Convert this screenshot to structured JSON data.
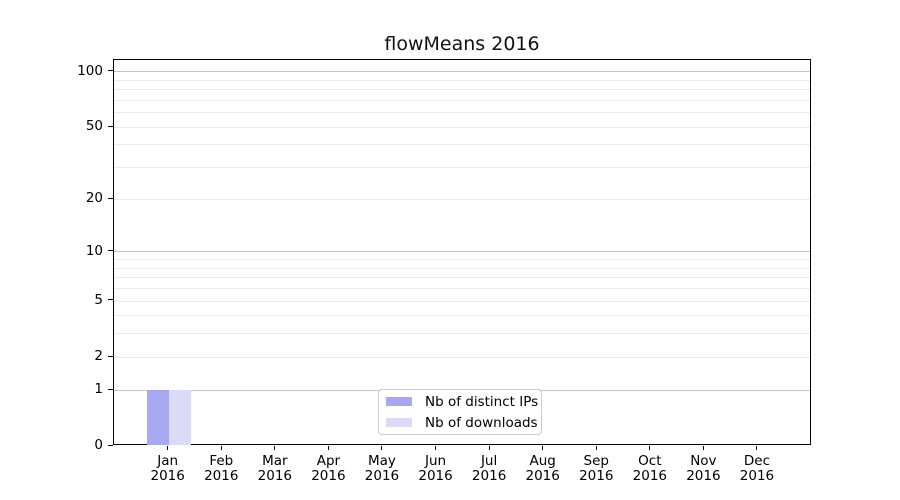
{
  "figure": {
    "title": "flowMeans 2016"
  },
  "chart_data": {
    "type": "bar",
    "title": "flowMeans 2016",
    "x_categories": [
      "Jan 2016",
      "Feb 2016",
      "Mar 2016",
      "Apr 2016",
      "May 2016",
      "Jun 2016",
      "Jul 2016",
      "Aug 2016",
      "Sep 2016",
      "Oct 2016",
      "Nov 2016",
      "Dec 2016"
    ],
    "series": [
      {
        "name": "Nb of distinct IPs",
        "color": "#a8a8f0",
        "values": [
          1,
          0,
          0,
          0,
          0,
          0,
          0,
          0,
          0,
          0,
          0,
          0
        ]
      },
      {
        "name": "Nb of downloads",
        "color": "#dbdbf8",
        "values": [
          1,
          0,
          0,
          0,
          0,
          0,
          0,
          0,
          0,
          0,
          0,
          0
        ]
      }
    ],
    "y_ticks": [
      0,
      1,
      2,
      5,
      10,
      20,
      50,
      100
    ],
    "y_scale": "log10(1+v)",
    "ylim": [
      0,
      115
    ],
    "major_gridlines": [
      1,
      10,
      100
    ],
    "minor_gridlines": [
      2,
      3,
      4,
      5,
      6,
      7,
      8,
      9,
      20,
      30,
      40,
      50,
      60,
      70,
      80,
      90
    ],
    "grid": "horizontal",
    "legend_position": "bottom-center-inside",
    "colors": {
      "axis": "#000000",
      "major_grid": "#c6c6c6",
      "minor_grid": "#eaeaea",
      "legend_border": "#cccccc",
      "background": "#ffffff"
    }
  }
}
